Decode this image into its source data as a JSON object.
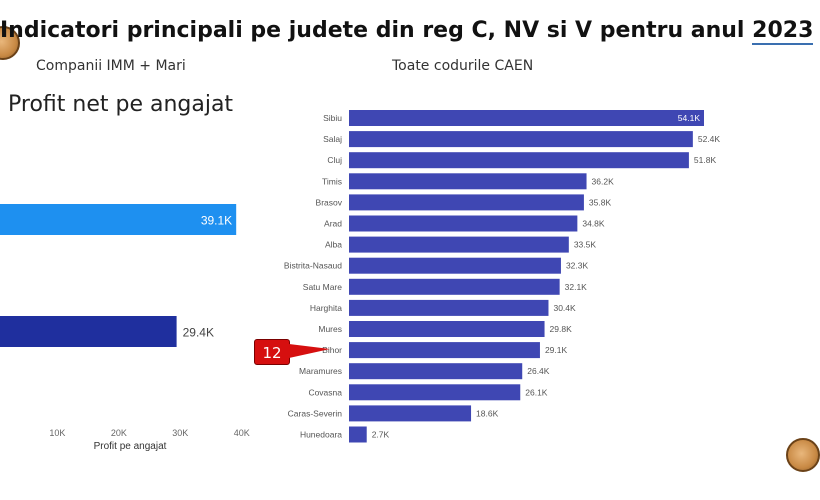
{
  "header": {
    "title_main": "Indicatori principali pe judete din reg C, NV si V pentru anul ",
    "title_year": "2023",
    "subtitle_left": "Companii IMM + Mari",
    "subtitle_right": "Toate codurile CAEN"
  },
  "callout": {
    "label": "12"
  },
  "chart_data": [
    {
      "type": "bar",
      "orientation": "horizontal",
      "title": "Profit net pe angajat",
      "xlabel": "Profit pe angajat",
      "ylabel": "",
      "xlim": [
        0,
        42000
      ],
      "x_ticks": [
        "10K",
        "20K",
        "30K",
        "40K"
      ],
      "x_tick_values": [
        10000,
        20000,
        30000,
        40000
      ],
      "grid": false,
      "categories": [
        "",
        ""
      ],
      "values": [
        39100,
        29400
      ],
      "data_labels": [
        "39.1K",
        "29.4K"
      ],
      "colors": [
        "#1e90f0",
        "#1f2f9e"
      ]
    },
    {
      "type": "bar",
      "orientation": "horizontal",
      "title": "",
      "xlabel": "",
      "ylabel": "",
      "xlim": [
        0,
        62000
      ],
      "grid": false,
      "categories": [
        "Sibiu",
        "Salaj",
        "Cluj",
        "Timis",
        "Brasov",
        "Arad",
        "Alba",
        "Bistrita-Nasaud",
        "Satu Mare",
        "Harghita",
        "Mures",
        "Bihor",
        "Maramures",
        "Covasna",
        "Caras-Severin",
        "Hunedoara"
      ],
      "values": [
        54100,
        52400,
        51800,
        36200,
        35800,
        34800,
        33500,
        32300,
        32100,
        30400,
        29800,
        29100,
        26400,
        26100,
        18600,
        2700
      ],
      "data_labels": [
        "54.1K",
        "52.4K",
        "51.8K",
        "36.2K",
        "35.8K",
        "34.8K",
        "33.5K",
        "32.3K",
        "32.1K",
        "30.4K",
        "29.8K",
        "29.1K",
        "26.4K",
        "26.1K",
        "18.6K",
        "2.7K"
      ],
      "color": "#3f47b3"
    }
  ]
}
